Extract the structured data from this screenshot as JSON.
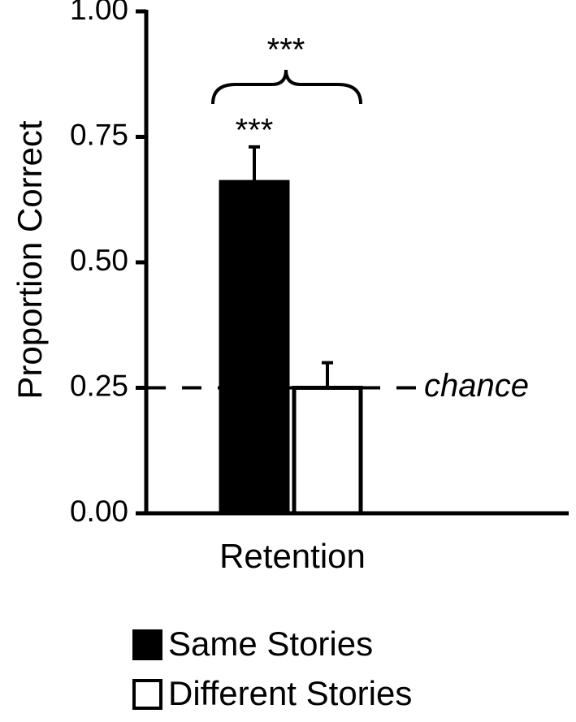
{
  "chart_data": {
    "type": "bar",
    "y_label": "Proportion Correct",
    "categories": [
      "Retention"
    ],
    "series": [
      {
        "name": "Same Stories",
        "color": "#000000",
        "values": [
          0.66
        ],
        "errors": [
          0.07
        ]
      },
      {
        "name": "Different Stories",
        "color": "#ffffff",
        "values": [
          0.25
        ],
        "errors": [
          0.05
        ]
      }
    ],
    "ylim": [
      0,
      1
    ],
    "yticks": [
      {
        "value": 0,
        "label": "0.00"
      },
      {
        "value": 0.25,
        "label": "0.25"
      },
      {
        "value": 0.5,
        "label": "0.50"
      },
      {
        "value": 0.75,
        "label": "0.75"
      },
      {
        "value": 1,
        "label": "1.00"
      }
    ],
    "reference_line": {
      "value": 0.25,
      "label": "chance"
    },
    "annotations": [
      "***",
      "***"
    ]
  }
}
